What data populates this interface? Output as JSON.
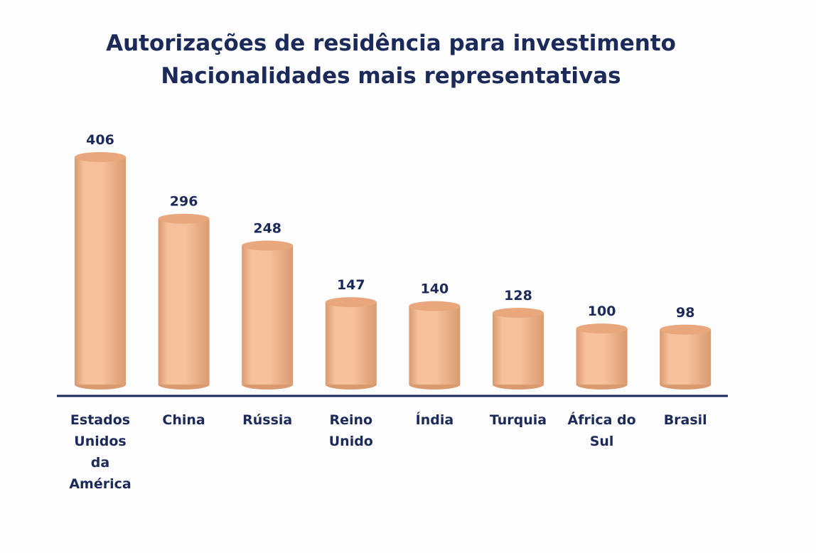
{
  "chart_data": {
    "type": "bar",
    "title": "Autorizações de residência para investimento",
    "subtitle": "Nacionalidades mais representativas",
    "categories": [
      [
        "Estados",
        "Unidos",
        "da",
        "América"
      ],
      [
        "China"
      ],
      [
        "Rússia"
      ],
      [
        "Reino",
        "Unido"
      ],
      [
        "Índia"
      ],
      [
        "Turquia"
      ],
      [
        "África do",
        "Sul"
      ],
      [
        "Brasil"
      ]
    ],
    "values": [
      406,
      296,
      248,
      147,
      140,
      128,
      100,
      98
    ],
    "ylim": [
      0,
      406
    ],
    "grid": false,
    "legend": "none",
    "bar_style": "cylinder"
  },
  "colors": {
    "bar": "#f6c09a",
    "bar_shadow": "#d99a70",
    "bar_top": "#e8a77c",
    "axis": "#1c2a5a",
    "text": "#1c2a5a"
  }
}
